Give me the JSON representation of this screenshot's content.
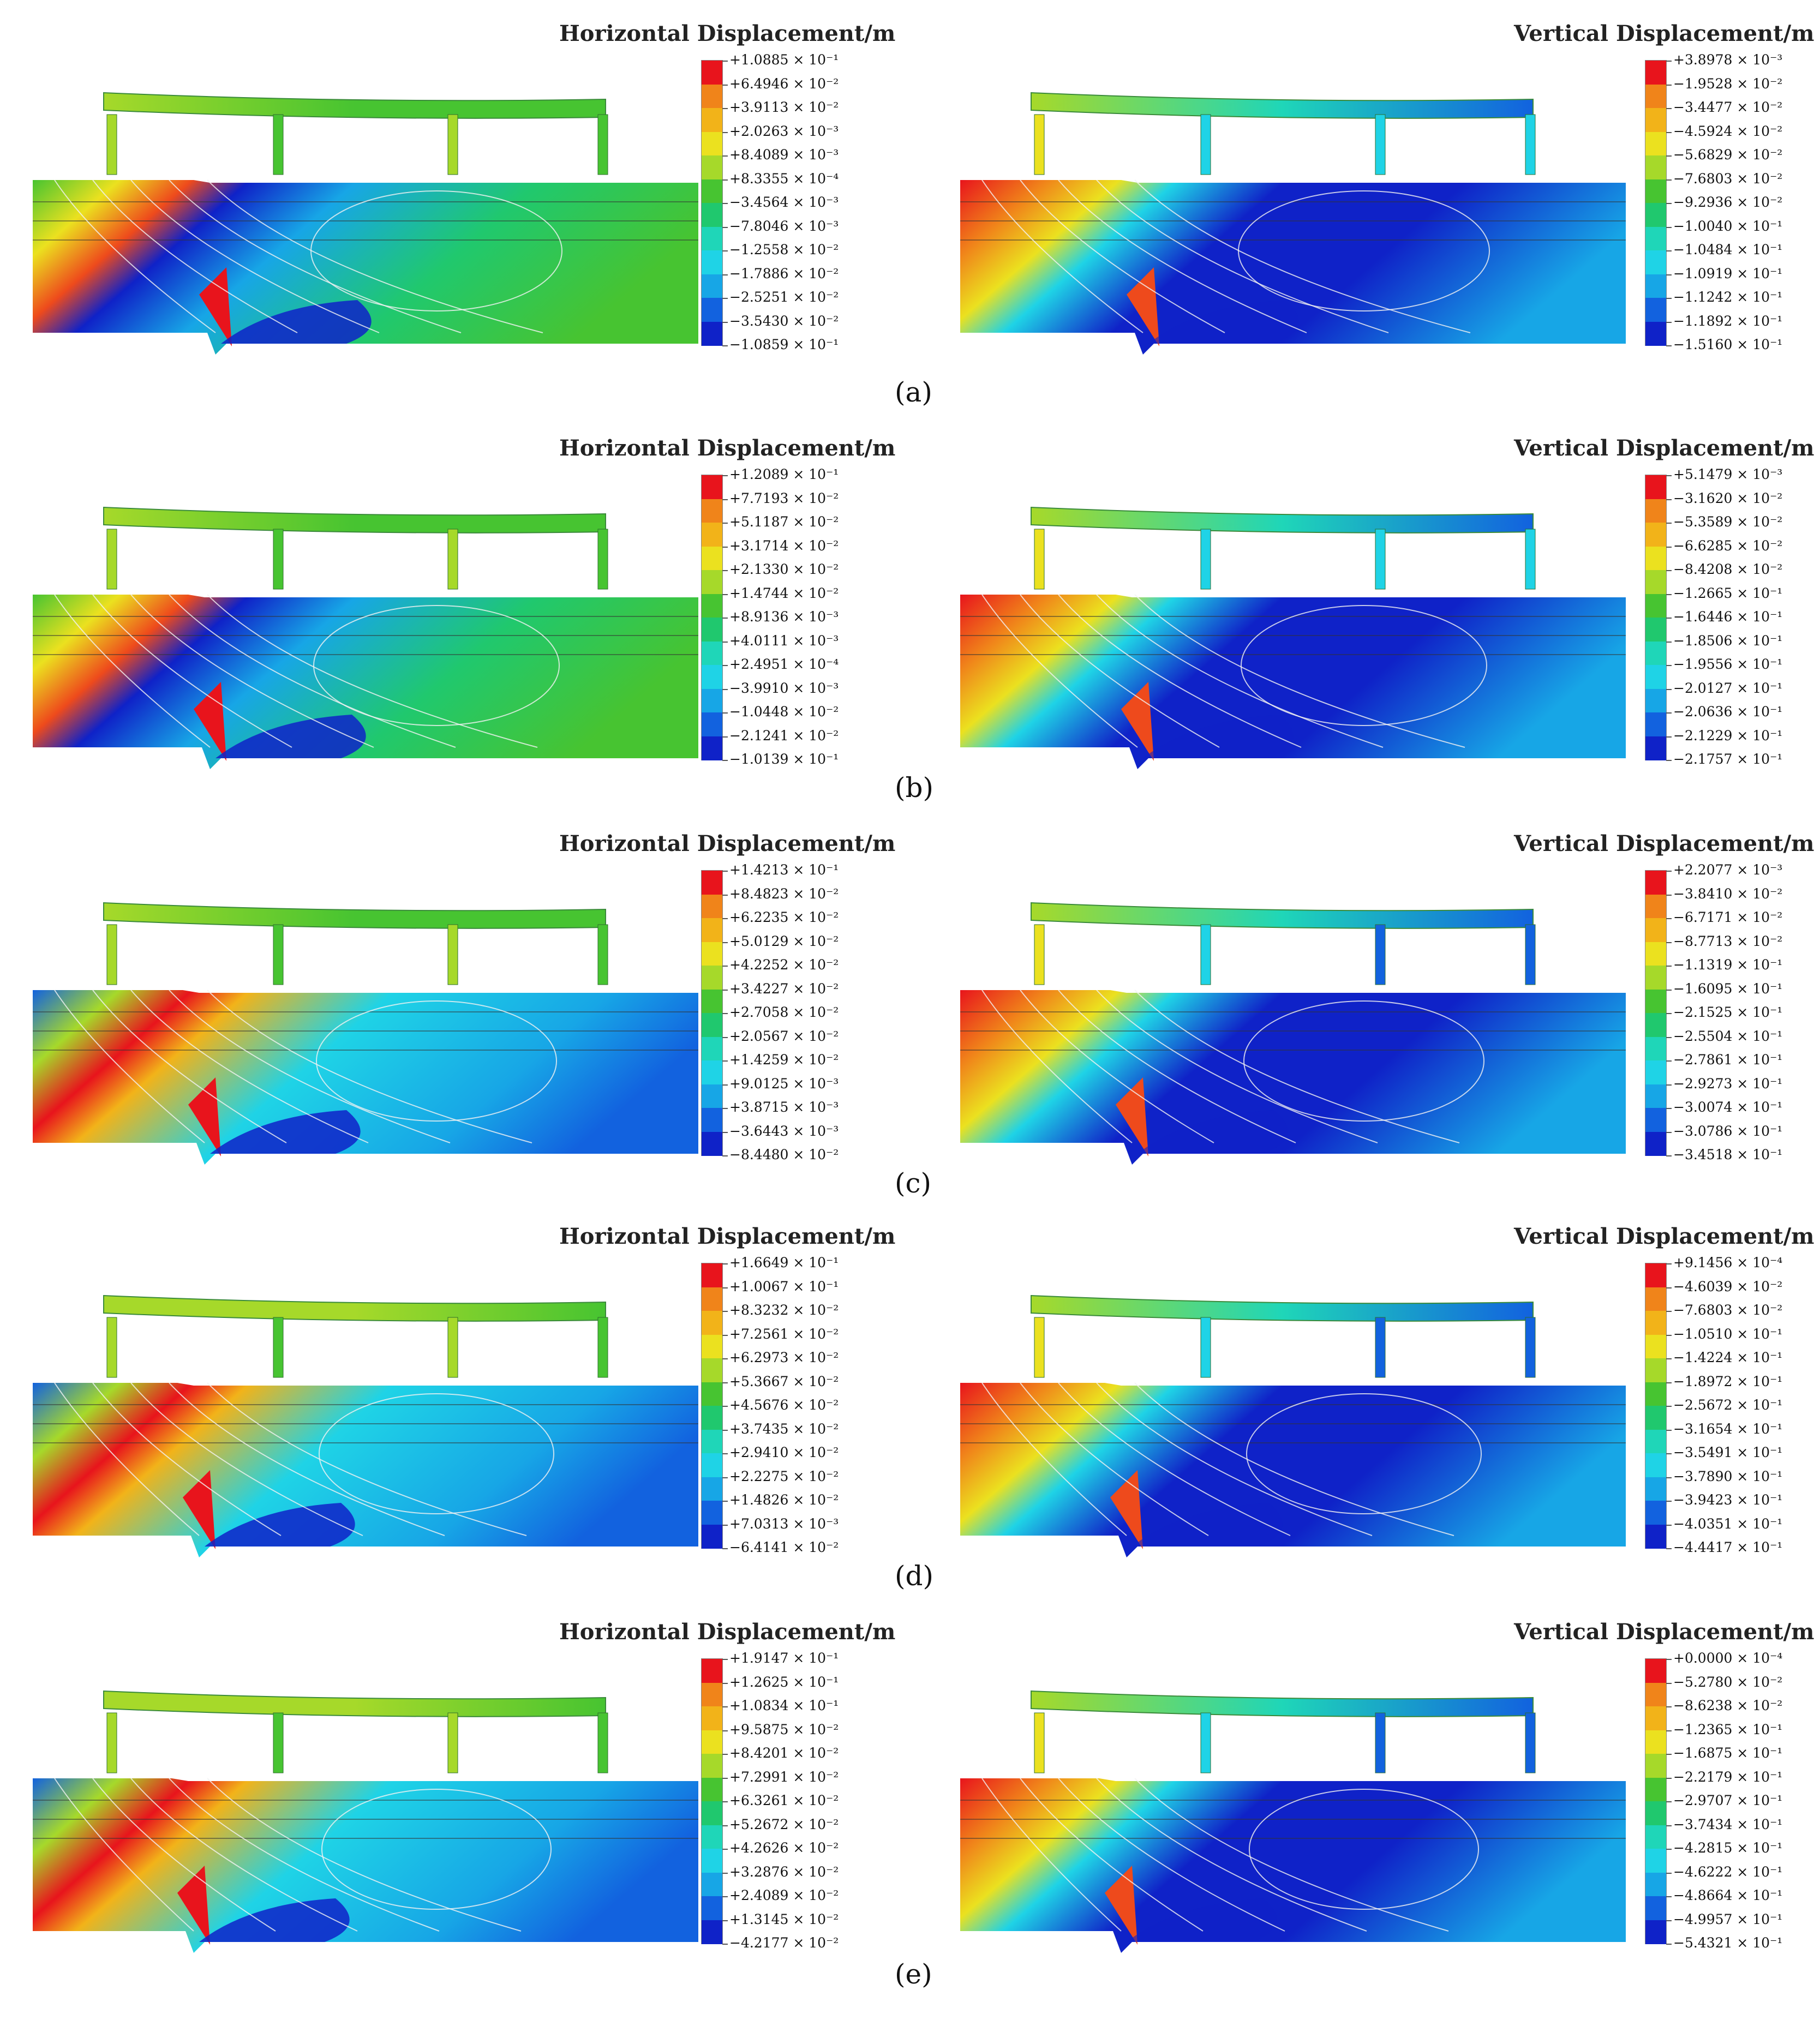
{
  "colors": {
    "scale": [
      "#e8141c",
      "#ee4a1c",
      "#f0841a",
      "#f2b319",
      "#ebe11f",
      "#a6d92a",
      "#47c431",
      "#20c86e",
      "#1fd6b8",
      "#1fd3e6",
      "#17a6e6",
      "#1262df",
      "#0f22c8"
    ],
    "contour": "#f2f2f2",
    "grid": "#333333"
  },
  "rows": [
    {
      "id": "a",
      "caption": "(a)",
      "horizontal": {
        "title": "Horizontal Displacement/m",
        "labels": [
          "+1.0885 × 10⁻¹",
          "+6.4946 × 10⁻²",
          "+3.9113 × 10⁻²",
          "+2.0263 × 10⁻³",
          "+8.4089 × 10⁻³",
          "+8.3355 × 10⁻⁴",
          "−3.4564 × 10⁻³",
          "−7.8046 × 10⁻³",
          "−1.2558 × 10⁻²",
          "−1.7886 × 10⁻²",
          "−2.5251 × 10⁻²",
          "−3.5430 × 10⁻²",
          "−1.0859 × 10⁻¹"
        ]
      },
      "vertical": {
        "title": "Vertical Displacement/m",
        "labels": [
          "+3.8978 × 10⁻³",
          "−1.9528 × 10⁻²",
          "−3.4477 × 10⁻²",
          "−4.5924 × 10⁻²",
          "−5.6829 × 10⁻²",
          "−7.6803 × 10⁻²",
          "−9.2936 × 10⁻²",
          "−1.0040 × 10⁻¹",
          "−1.0484 × 10⁻¹",
          "−1.0919 × 10⁻¹",
          "−1.1242 × 10⁻¹",
          "−1.1892 × 10⁻¹",
          "−1.5160 × 10⁻¹"
        ]
      }
    },
    {
      "id": "b",
      "caption": "(b)",
      "horizontal": {
        "title": "Horizontal Displacement/m",
        "labels": [
          "+1.2089 × 10⁻¹",
          "+7.7193 × 10⁻²",
          "+5.1187 × 10⁻²",
          "+3.1714 × 10⁻²",
          "+2.1330 × 10⁻²",
          "+1.4744 × 10⁻²",
          "+8.9136 × 10⁻³",
          "+4.0111 × 10⁻³",
          "+2.4951 × 10⁻⁴",
          "−3.9910 × 10⁻³",
          "−1.0448 × 10⁻²",
          "−2.1241 × 10⁻²",
          "−1.0139 × 10⁻¹"
        ]
      },
      "vertical": {
        "title": "Vertical Displacement/m",
        "labels": [
          "+5.1479 × 10⁻³",
          "−3.1620 × 10⁻²",
          "−5.3589 × 10⁻²",
          "−6.6285 × 10⁻²",
          "−8.4208 × 10⁻²",
          "−1.2665 × 10⁻¹",
          "−1.6446 × 10⁻¹",
          "−1.8506 × 10⁻¹",
          "−1.9556 × 10⁻¹",
          "−2.0127 × 10⁻¹",
          "−2.0636 × 10⁻¹",
          "−2.1229 × 10⁻¹",
          "−2.1757 × 10⁻¹"
        ]
      }
    },
    {
      "id": "c",
      "caption": "(c)",
      "horizontal": {
        "title": "Horizontal Displacement/m",
        "labels": [
          "+1.4213 × 10⁻¹",
          "+8.4823 × 10⁻²",
          "+6.2235 × 10⁻²",
          "+5.0129 × 10⁻²",
          "+4.2252 × 10⁻²",
          "+3.4227 × 10⁻²",
          "+2.7058 × 10⁻²",
          "+2.0567 × 10⁻²",
          "+1.4259 × 10⁻²",
          "+9.0125 × 10⁻³",
          "+3.8715 × 10⁻³",
          "−3.6443 × 10⁻³",
          "−8.4480 × 10⁻²"
        ]
      },
      "vertical": {
        "title": "Vertical Displacement/m",
        "labels": [
          "+2.2077 × 10⁻³",
          "−3.8410 × 10⁻²",
          "−6.7171 × 10⁻²",
          "−8.7713 × 10⁻²",
          "−1.1319 × 10⁻¹",
          "−1.6095 × 10⁻¹",
          "−2.1525 × 10⁻¹",
          "−2.5504 × 10⁻¹",
          "−2.7861 × 10⁻¹",
          "−2.9273 × 10⁻¹",
          "−3.0074 × 10⁻¹",
          "−3.0786 × 10⁻¹",
          "−3.4518 × 10⁻¹"
        ]
      }
    },
    {
      "id": "d",
      "caption": "(d)",
      "horizontal": {
        "title": "Horizontal Displacement/m",
        "labels": [
          "+1.6649 × 10⁻¹",
          "+1.0067 × 10⁻¹",
          "+8.3232 × 10⁻²",
          "+7.2561 × 10⁻²",
          "+6.2973 × 10⁻²",
          "+5.3667 × 10⁻²",
          "+4.5676 × 10⁻²",
          "+3.7435 × 10⁻²",
          "+2.9410 × 10⁻²",
          "+2.2275 × 10⁻²",
          "+1.4826 × 10⁻²",
          "+7.0313 × 10⁻³",
          "−6.4141 × 10⁻²"
        ]
      },
      "vertical": {
        "title": "Vertical Displacement/m",
        "labels": [
          "+9.1456 × 10⁻⁴",
          "−4.6039 × 10⁻²",
          "−7.6803 × 10⁻²",
          "−1.0510 × 10⁻¹",
          "−1.4224 × 10⁻¹",
          "−1.8972 × 10⁻¹",
          "−2.5672 × 10⁻¹",
          "−3.1654 × 10⁻¹",
          "−3.5491 × 10⁻¹",
          "−3.7890 × 10⁻¹",
          "−3.9423 × 10⁻¹",
          "−4.0351 × 10⁻¹",
          "−4.4417 × 10⁻¹"
        ]
      }
    },
    {
      "id": "e",
      "caption": "(e)",
      "horizontal": {
        "title": "Horizontal Displacement/m",
        "labels": [
          "+1.9147 × 10⁻¹",
          "+1.2625 × 10⁻¹",
          "+1.0834 × 10⁻¹",
          "+9.5875 × 10⁻²",
          "+8.4201 × 10⁻²",
          "+7.2991 × 10⁻²",
          "+6.3261 × 10⁻²",
          "+5.2672 × 10⁻²",
          "+4.2626 × 10⁻²",
          "+3.2876 × 10⁻²",
          "+2.4089 × 10⁻²",
          "+1.3145 × 10⁻²",
          "−4.2177 × 10⁻²"
        ]
      },
      "vertical": {
        "title": "Vertical Displacement/m",
        "labels": [
          "+0.0000 × 10⁻⁴",
          "−5.2780 × 10⁻²",
          "−8.6238 × 10⁻²",
          "−1.2365 × 10⁻¹",
          "−1.6875 × 10⁻¹",
          "−2.2179 × 10⁻¹",
          "−2.9707 × 10⁻¹",
          "−3.7434 × 10⁻¹",
          "−4.2815 × 10⁻¹",
          "−4.6222 × 10⁻¹",
          "−4.8664 × 10⁻¹",
          "−4.9957 × 10⁻¹",
          "−5.4321 × 10⁻¹"
        ]
      }
    }
  ]
}
